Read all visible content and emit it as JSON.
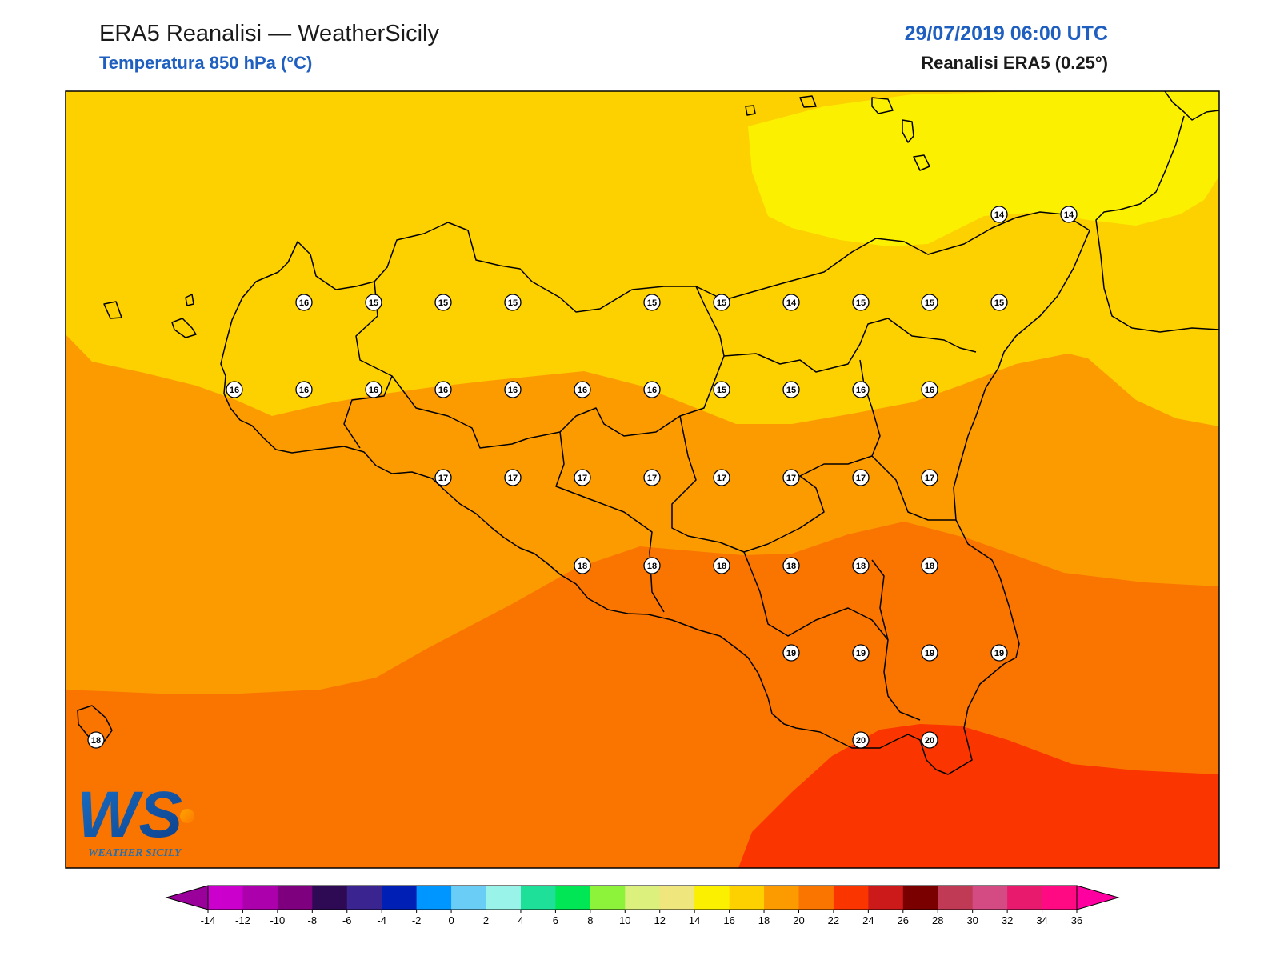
{
  "header": {
    "title": "ERA5 Reanalisi — WeatherSicily",
    "subtitle": "Temperatura 850 hPa (°C)",
    "datetime": "29/07/2019 06:00 UTC",
    "source": "Reanalisi ERA5 (0.25°)"
  },
  "logo": {
    "initials": "WS",
    "name": "WEATHER SICILY",
    "icon": "weathersicily-logo-icon"
  },
  "map": {
    "field": "temperature-850hPa",
    "unit": "°C",
    "band_colors": {
      "12-14": "#fbf000",
      "14-16": "#fdd000",
      "16-18": "#fc9b00",
      "18-20": "#fa7500",
      "20-22": "#fa3500"
    },
    "grid_values": [
      [
        14,
        14
      ],
      [
        16,
        15,
        15,
        15,
        15,
        15,
        14,
        15,
        15,
        15
      ],
      [
        16,
        16,
        16,
        16,
        16,
        16,
        16,
        15,
        15,
        16,
        16
      ],
      [
        17,
        17,
        17,
        17,
        17,
        17,
        17,
        17
      ],
      [
        18,
        18,
        18,
        18,
        18,
        18
      ],
      [
        19,
        19,
        19,
        19
      ],
      [
        20,
        20
      ],
      [
        18
      ]
    ]
  },
  "colorbar": {
    "ticks": [
      "-14",
      "-12",
      "-10",
      "-8",
      "-6",
      "-4",
      "-2",
      "0",
      "2",
      "4",
      "6",
      "8",
      "10",
      "12",
      "14",
      "16",
      "18",
      "20",
      "22",
      "24",
      "26",
      "28",
      "30",
      "32",
      "34",
      "36"
    ],
    "colors": [
      "#cc00cc",
      "#ad00ad",
      "#7f007f",
      "#2e0a55",
      "#3a2490",
      "#001fb4",
      "#0096ff",
      "#6acdf6",
      "#9af3e8",
      "#1ee098",
      "#00e654",
      "#8cf23a",
      "#dcf07e",
      "#f0e67e",
      "#fbf000",
      "#fdd000",
      "#fc9b00",
      "#fa7500",
      "#fa3500",
      "#cc1a1a",
      "#7a0000",
      "#c03a55",
      "#d44a82",
      "#e81a6e",
      "#ff0a82"
    ],
    "under_color": "#9a009a",
    "over_color": "#ff00a0"
  }
}
